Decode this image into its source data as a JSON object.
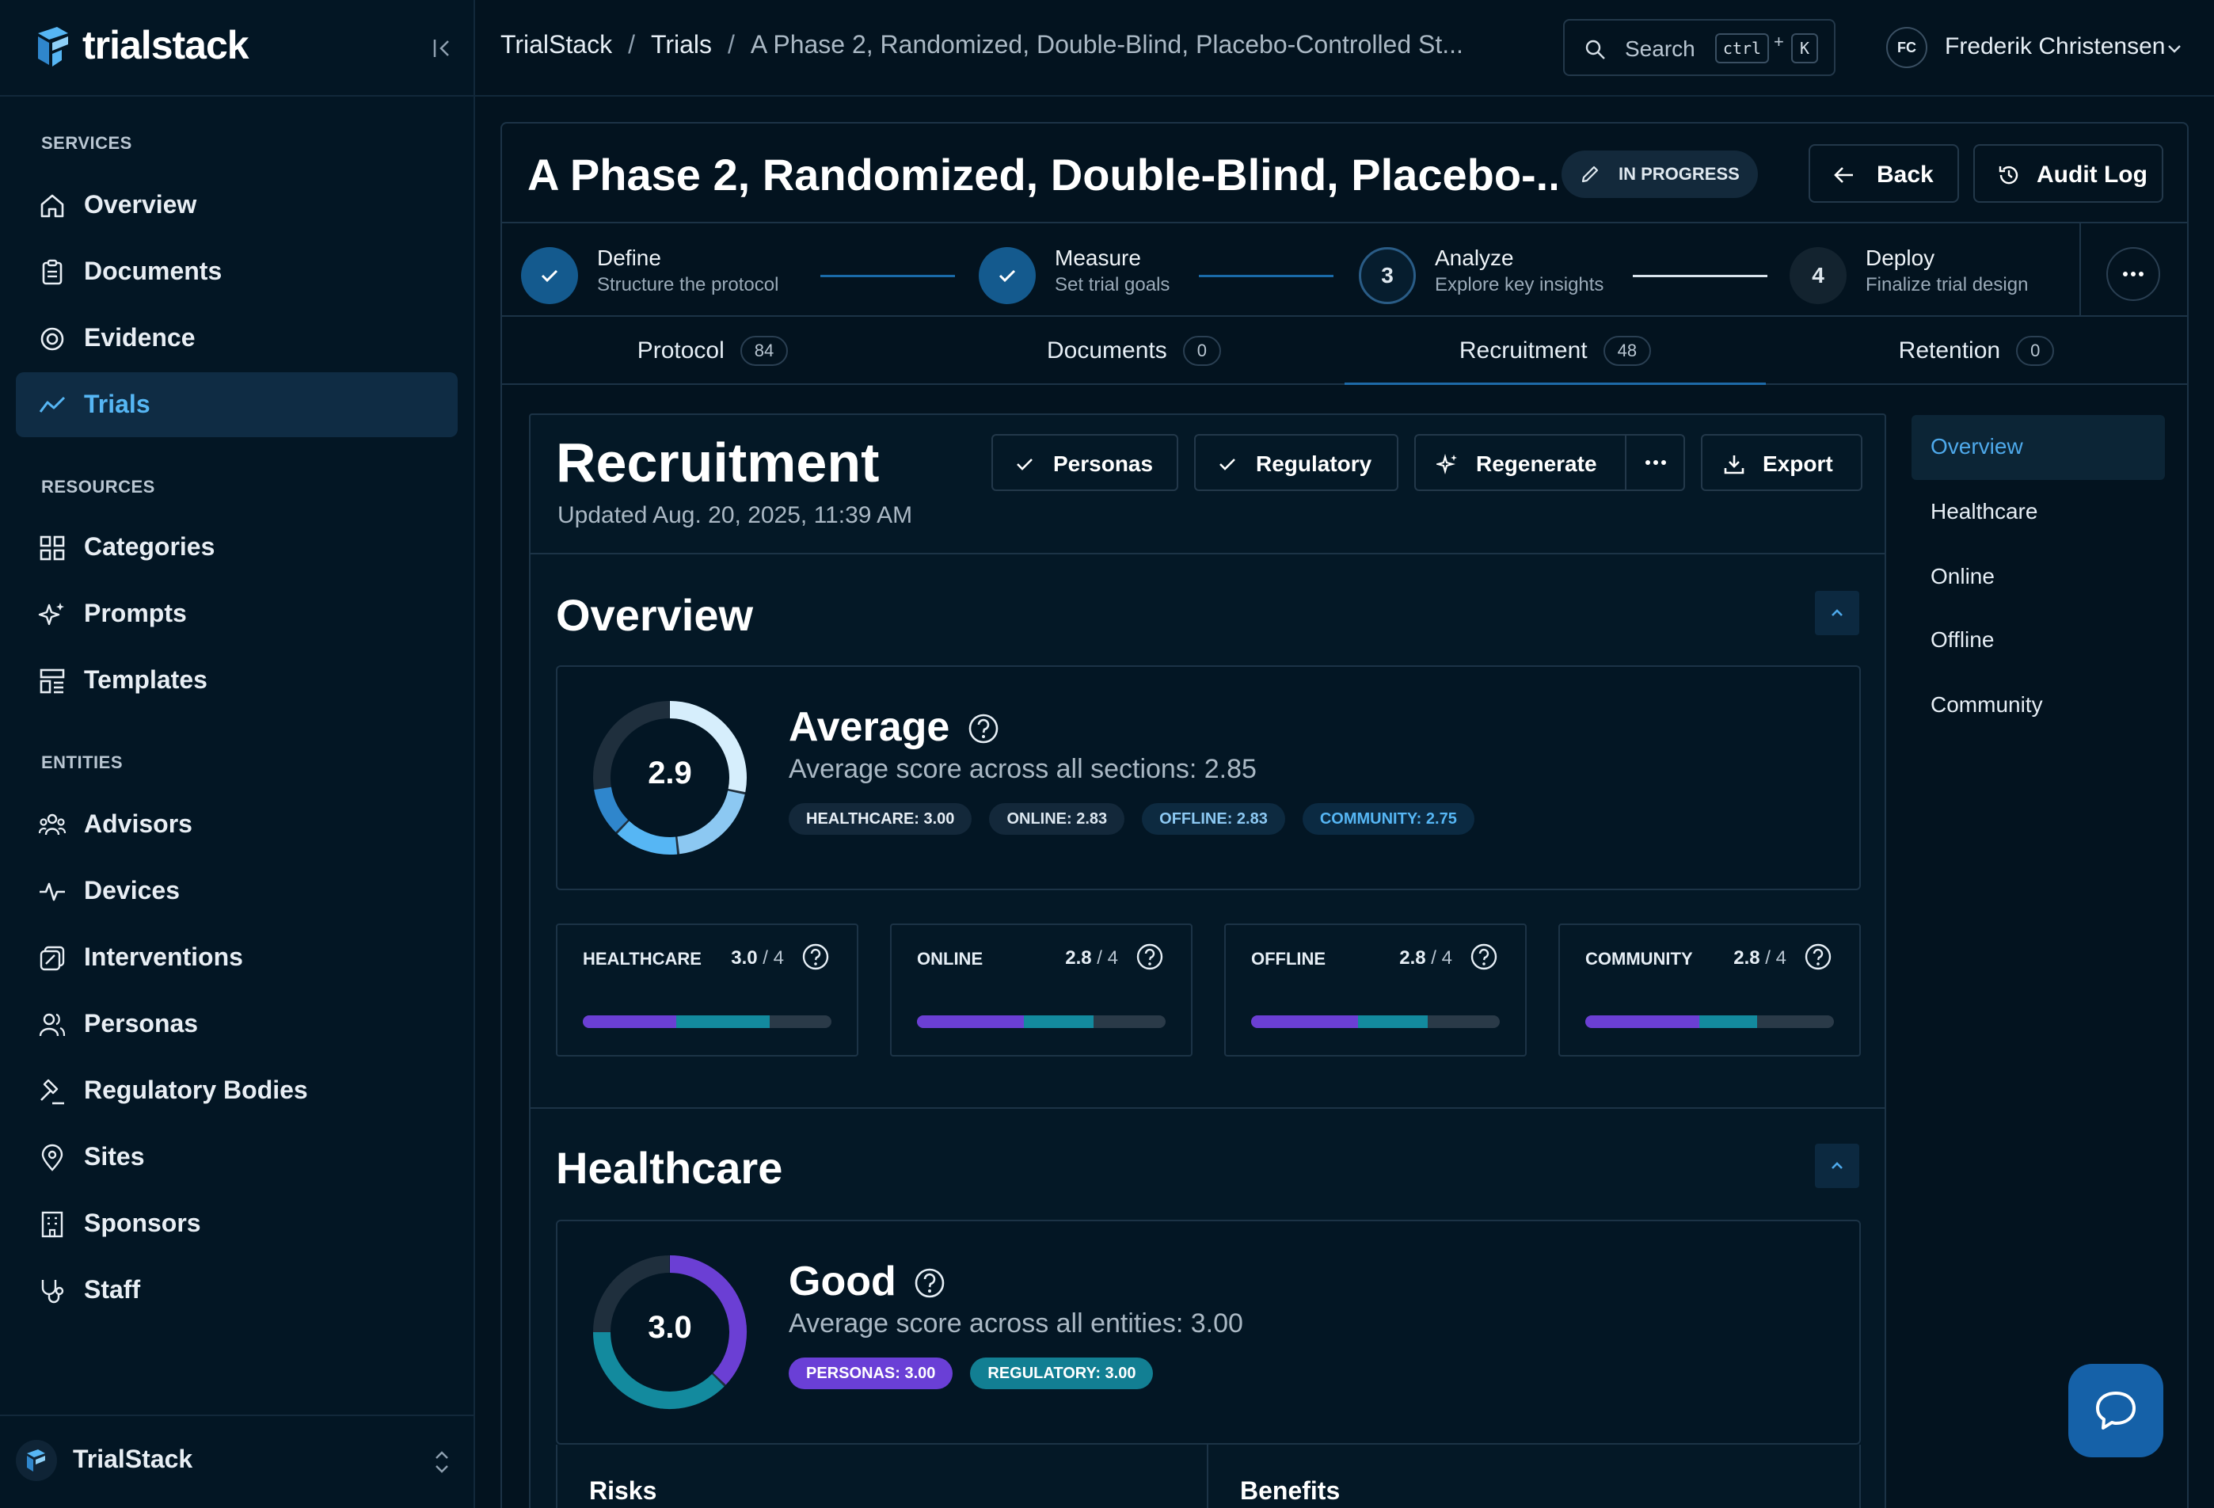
{
  "brand": {
    "name": "trialstack",
    "logo_icon": "trialstack-logo-icon",
    "collapse_icon": "collapse-sidebar-icon"
  },
  "sidebar": {
    "sections": [
      {
        "label": "SERVICES",
        "items": [
          {
            "label": "Overview",
            "icon": "home-icon"
          },
          {
            "label": "Documents",
            "icon": "clipboard-icon"
          },
          {
            "label": "Evidence",
            "icon": "target-icon"
          },
          {
            "label": "Trials",
            "icon": "trend-icon",
            "active": true
          }
        ]
      },
      {
        "label": "RESOURCES",
        "items": [
          {
            "label": "Categories",
            "icon": "grid-icon"
          },
          {
            "label": "Prompts",
            "icon": "sparkles-icon"
          },
          {
            "label": "Templates",
            "icon": "template-icon"
          }
        ]
      },
      {
        "label": "ENTITIES",
        "items": [
          {
            "label": "Advisors",
            "icon": "users-icon"
          },
          {
            "label": "Devices",
            "icon": "pulse-icon"
          },
          {
            "label": "Interventions",
            "icon": "intervention-icon"
          },
          {
            "label": "Personas",
            "icon": "persona-icon"
          },
          {
            "label": "Regulatory Bodies",
            "icon": "gavel-icon"
          },
          {
            "label": "Sites",
            "icon": "map-pin-icon"
          },
          {
            "label": "Sponsors",
            "icon": "building-icon"
          },
          {
            "label": "Staff",
            "icon": "stethoscope-icon"
          }
        ]
      }
    ],
    "footer": {
      "label": "TrialStack"
    }
  },
  "topbar": {
    "breadcrumb": [
      "TrialStack",
      "Trials",
      "A Phase 2, Randomized, Double-Blind, Placebo-Controlled St..."
    ],
    "search": {
      "label": "Search",
      "kbd_ctrl": "ctrl",
      "kbd_plus": "+",
      "kbd_k": "K"
    },
    "user": {
      "initials": "FC",
      "name": "Frederik Christensen"
    }
  },
  "header": {
    "title": "A Phase 2, Randomized, Double-Blind, Placebo-...",
    "status": "IN PROGRESS",
    "back_label": "Back",
    "audit_label": "Audit Log"
  },
  "steps": [
    {
      "name": "Define",
      "sub": "Structure the protocol",
      "state": "done"
    },
    {
      "name": "Measure",
      "sub": "Set trial goals",
      "state": "done"
    },
    {
      "name": "Analyze",
      "sub": "Explore key insights",
      "state": "current",
      "number": "3"
    },
    {
      "name": "Deploy",
      "sub": "Finalize trial design",
      "state": "todo",
      "number": "4"
    }
  ],
  "tabs": [
    {
      "label": "Protocol",
      "count": "84"
    },
    {
      "label": "Documents",
      "count": "0"
    },
    {
      "label": "Recruitment",
      "count": "48",
      "active": true
    },
    {
      "label": "Retention",
      "count": "0"
    }
  ],
  "recruitment": {
    "title": "Recruitment",
    "updated": "Updated Aug. 20, 2025, 11:39 AM",
    "actions": {
      "personas": "Personas",
      "regulatory": "Regulatory",
      "regenerate": "Regenerate",
      "export": "Export"
    }
  },
  "overview": {
    "title": "Overview",
    "score": "2.9",
    "score_fraction": 0.725,
    "rating": "Average",
    "description": "Average score across all sections: 2.85",
    "chips": [
      {
        "label": "HEALTHCARE: 3.00",
        "color": "#13283a",
        "text": "#e6eef5"
      },
      {
        "label": "ONLINE: 2.83",
        "color": "#13283a",
        "text": "#dbe6ef"
      },
      {
        "label": "OFFLINE: 2.83",
        "color": "#0d2a40",
        "text": "#8cc8f2"
      },
      {
        "label": "COMMUNITY: 2.75",
        "color": "#0b2a42",
        "text": "#56b6f4"
      }
    ],
    "metrics": [
      {
        "name": "HEALTHCARE",
        "value": "3.0",
        "max": "/ 4",
        "purple": 0.375,
        "teal": 0.375
      },
      {
        "name": "ONLINE",
        "value": "2.8",
        "max": "/ 4",
        "purple": 0.43,
        "teal": 0.28
      },
      {
        "name": "OFFLINE",
        "value": "2.8",
        "max": "/ 4",
        "purple": 0.43,
        "teal": 0.28
      },
      {
        "name": "COMMUNITY",
        "value": "2.8",
        "max": "/ 4",
        "purple": 0.46,
        "teal": 0.23
      }
    ]
  },
  "healthcare": {
    "title": "Healthcare",
    "score": "3.0",
    "rating": "Good",
    "description": "Average score across all entities: 3.00",
    "chips": [
      {
        "label": "PERSONAS: 3.00",
        "color": "#6a3fd6",
        "text": "#ffffff"
      },
      {
        "label": "REGULATORY: 3.00",
        "color": "#127f93",
        "text": "#ffffff"
      }
    ],
    "columns": [
      "Risks",
      "Benefits"
    ]
  },
  "toc": [
    "Overview",
    "Healthcare",
    "Online",
    "Offline",
    "Community"
  ],
  "colors": {
    "accent": "#1e6aa8",
    "purple": "#6b3fd4",
    "teal": "#138a9e",
    "light_blue": "#9ed4f7"
  }
}
